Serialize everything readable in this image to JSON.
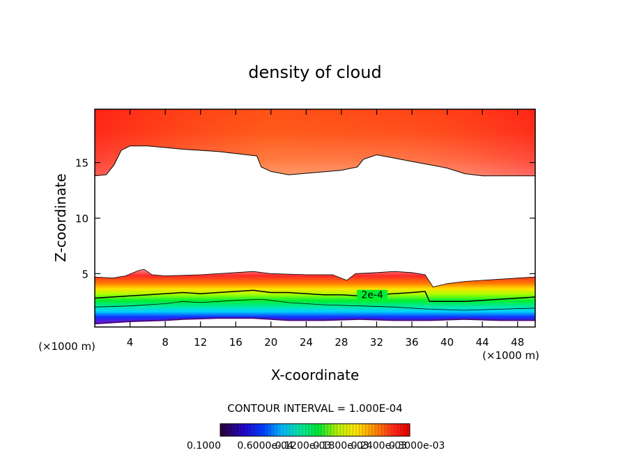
{
  "chart_data": {
    "type": "heatmap",
    "title": "density of cloud",
    "xlabel": "X-coordinate",
    "ylabel": "Z-coordinate",
    "x_unit": "(×1000 m)",
    "y_unit": "(×1000 m)",
    "xlim": [
      0,
      50
    ],
    "ylim": [
      0.2,
      19.8
    ],
    "x_ticks": [
      4,
      8,
      12,
      16,
      20,
      24,
      28,
      32,
      36,
      40,
      44,
      48
    ],
    "y_ticks": [
      5,
      10,
      15
    ],
    "contour_interval_text": "CONTOUR INTERVAL = 1.000E-04",
    "contour_label": "2e-4",
    "colorbar_labels": [
      "0.1000",
      "0.6000e-04",
      "0.1200e-03",
      "0.1800e-03",
      "0.2400e-03",
      "0.3000e-03"
    ],
    "upper_cloud_base": [
      [
        0,
        13.8
      ],
      [
        1.3,
        13.9
      ],
      [
        2.2,
        14.8
      ],
      [
        3.0,
        16.1
      ],
      [
        4.0,
        16.5
      ],
      [
        6,
        16.5
      ],
      [
        10,
        16.2
      ],
      [
        14,
        16.0
      ],
      [
        18.4,
        15.6
      ],
      [
        18.9,
        14.6
      ],
      [
        20,
        14.2
      ],
      [
        22,
        13.9
      ],
      [
        25,
        14.1
      ],
      [
        28,
        14.3
      ],
      [
        29.8,
        14.6
      ],
      [
        30.5,
        15.3
      ],
      [
        32,
        15.7
      ],
      [
        34,
        15.4
      ],
      [
        36,
        15.1
      ],
      [
        38,
        14.8
      ],
      [
        40,
        14.5
      ],
      [
        42,
        14.0
      ],
      [
        44,
        13.8
      ],
      [
        50,
        13.8
      ]
    ],
    "lower_cloud_top": [
      [
        0,
        4.7
      ],
      [
        2,
        4.6
      ],
      [
        3.5,
        4.8
      ],
      [
        5,
        5.3
      ],
      [
        5.6,
        5.4
      ],
      [
        6.5,
        4.9
      ],
      [
        8,
        4.8
      ],
      [
        12,
        4.9
      ],
      [
        16,
        5.1
      ],
      [
        18,
        5.2
      ],
      [
        20,
        5.0
      ],
      [
        24,
        4.9
      ],
      [
        27,
        4.9
      ],
      [
        28.6,
        4.4
      ],
      [
        29.6,
        5.0
      ],
      [
        32,
        5.1
      ],
      [
        34,
        5.2
      ],
      [
        36,
        5.1
      ],
      [
        37.5,
        4.9
      ],
      [
        38.4,
        3.8
      ],
      [
        40,
        4.1
      ],
      [
        42,
        4.3
      ],
      [
        44,
        4.4
      ],
      [
        46,
        4.5
      ],
      [
        48,
        4.6
      ],
      [
        50,
        4.7
      ]
    ],
    "contour_2e4": [
      [
        0,
        2.8
      ],
      [
        2,
        2.9
      ],
      [
        4,
        3.0
      ],
      [
        6,
        3.1
      ],
      [
        8,
        3.2
      ],
      [
        10,
        3.3
      ],
      [
        12,
        3.2
      ],
      [
        14,
        3.3
      ],
      [
        16,
        3.4
      ],
      [
        18,
        3.5
      ],
      [
        20,
        3.3
      ],
      [
        22,
        3.3
      ],
      [
        24,
        3.2
      ],
      [
        26,
        3.1
      ],
      [
        28,
        3.1
      ],
      [
        30,
        3.0
      ],
      [
        32,
        3.1
      ],
      [
        34,
        3.2
      ],
      [
        36,
        3.3
      ],
      [
        37.5,
        3.4
      ],
      [
        38,
        2.5
      ],
      [
        40,
        2.5
      ],
      [
        42,
        2.5
      ],
      [
        44,
        2.6
      ],
      [
        46,
        2.7
      ],
      [
        48,
        2.8
      ],
      [
        50,
        2.9
      ]
    ],
    "contour_lower": [
      [
        0,
        2.0
      ],
      [
        4,
        2.1
      ],
      [
        8,
        2.3
      ],
      [
        10,
        2.5
      ],
      [
        12,
        2.4
      ],
      [
        16,
        2.6
      ],
      [
        19,
        2.7
      ],
      [
        22,
        2.4
      ],
      [
        26,
        2.2
      ],
      [
        30,
        2.1
      ],
      [
        34,
        2.0
      ],
      [
        38,
        1.8
      ],
      [
        42,
        1.7
      ],
      [
        46,
        1.8
      ],
      [
        50,
        1.9
      ]
    ],
    "lower_cloud_base": [
      [
        0,
        0.5
      ],
      [
        4,
        0.7
      ],
      [
        8,
        0.8
      ],
      [
        10,
        0.9
      ],
      [
        14,
        1.0
      ],
      [
        18,
        1.0
      ],
      [
        22,
        0.8
      ],
      [
        26,
        0.8
      ],
      [
        30,
        0.9
      ],
      [
        34,
        0.8
      ],
      [
        38,
        0.8
      ],
      [
        42,
        0.9
      ],
      [
        46,
        0.8
      ],
      [
        50,
        0.8
      ]
    ],
    "colors": {
      "red": "#ff1f1f",
      "pink": "#ff9a9a",
      "yellow": "#ffe000",
      "green": "#00ee33",
      "cyan": "#00d0ff",
      "blue": "#1030ff",
      "purple": "#7a12c8"
    }
  }
}
